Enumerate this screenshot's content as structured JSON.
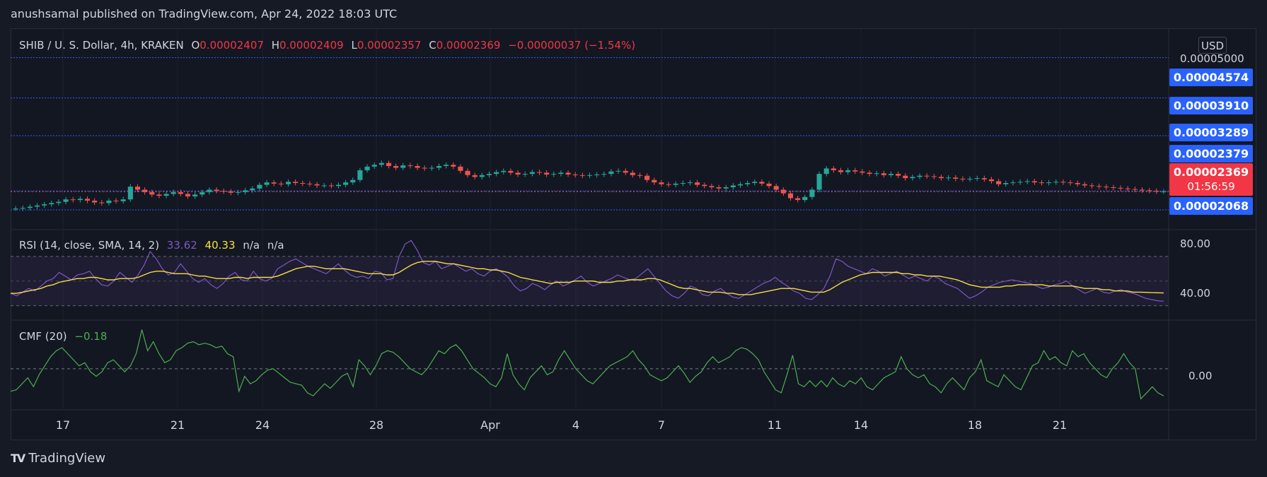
{
  "header": {
    "text": "anushsamal published on TradingView.com, Apr 24, 2022 18:03 UTC"
  },
  "legend": {
    "symbol": "SHIB / U. S. Dollar, 4h, KRAKEN",
    "o_label": "O",
    "o_value": "0.00002407",
    "h_label": "H",
    "h_value": "0.00002409",
    "l_label": "L",
    "l_value": "0.00002357",
    "c_label": "C",
    "c_value": "0.00002369",
    "change": "−0.00000037 (−1.54%)"
  },
  "rsi_legend": {
    "label": "RSI (14, close, SMA, 14, 2)",
    "rsi_value": "33.62",
    "sma_value": "40.33",
    "na1": "n/a",
    "na2": "n/a"
  },
  "cmf_legend": {
    "label": "CMF (20)",
    "value": "−0.18"
  },
  "currency_button": "USD",
  "price_axis": {
    "top_tick": "0.00005000",
    "labels": [
      "0.00004574",
      "0.00003910",
      "0.00003289",
      "0.00002379",
      "0.00002068"
    ],
    "last_price": "0.00002369",
    "countdown": "01:56:59"
  },
  "rsi_axis": [
    "80.00",
    "40.00"
  ],
  "cmf_axis": [
    "0.00"
  ],
  "x_axis": [
    "17",
    "21",
    "24",
    "28",
    "Apr",
    "4",
    "7",
    "11",
    "14",
    "18",
    "21"
  ],
  "brand": {
    "name": "TradingView",
    "mark": "TV"
  },
  "colors": {
    "up": "#26a69a",
    "down": "#ef5350",
    "rsi": "#7e57c2",
    "rsi_sma": "#f5e042",
    "cmf": "#4caf50",
    "hline": "#2962ff"
  },
  "chart_data": [
    {
      "type": "candlestick",
      "title": "SHIB / U. S. Dollar, 4h, KRAKEN",
      "ylim": [
        1.8e-05,
        5e-05
      ],
      "horizontal_levels": [
        4.574e-05,
        3.91e-05,
        3.289e-05,
        2.379e-05,
        2.068e-05
      ],
      "last_close": 2.369e-05,
      "x_ticks": [
        "17",
        "21",
        "24",
        "28",
        "Apr",
        "4",
        "7",
        "11",
        "14",
        "18",
        "21"
      ],
      "closes_approx": [
        2.09e-05,
        2.1e-05,
        2.12e-05,
        2.14e-05,
        2.16e-05,
        2.18e-05,
        2.2e-05,
        2.24e-05,
        2.23e-05,
        2.25e-05,
        2.22e-05,
        2.19e-05,
        2.18e-05,
        2.22e-05,
        2.21e-05,
        2.24e-05,
        2.45e-05,
        2.4e-05,
        2.36e-05,
        2.32e-05,
        2.3e-05,
        2.33e-05,
        2.36e-05,
        2.33e-05,
        2.29e-05,
        2.32e-05,
        2.36e-05,
        2.4e-05,
        2.38e-05,
        2.37e-05,
        2.35e-05,
        2.36e-05,
        2.39e-05,
        2.42e-05,
        2.48e-05,
        2.52e-05,
        2.5e-05,
        2.49e-05,
        2.53e-05,
        2.51e-05,
        2.5e-05,
        2.49e-05,
        2.47e-05,
        2.47e-05,
        2.46e-05,
        2.48e-05,
        2.52e-05,
        2.56e-05,
        2.72e-05,
        2.78e-05,
        2.81e-05,
        2.84e-05,
        2.79e-05,
        2.76e-05,
        2.8e-05,
        2.79e-05,
        2.76e-05,
        2.75e-05,
        2.76e-05,
        2.79e-05,
        2.81e-05,
        2.78e-05,
        2.71e-05,
        2.64e-05,
        2.61e-05,
        2.64e-05,
        2.66e-05,
        2.69e-05,
        2.71e-05,
        2.68e-05,
        2.65e-05,
        2.66e-05,
        2.69e-05,
        2.68e-05,
        2.65e-05,
        2.66e-05,
        2.68e-05,
        2.65e-05,
        2.64e-05,
        2.63e-05,
        2.64e-05,
        2.65e-05,
        2.66e-05,
        2.7e-05,
        2.71e-05,
        2.68e-05,
        2.64e-05,
        2.63e-05,
        2.56e-05,
        2.52e-05,
        2.49e-05,
        2.48e-05,
        2.5e-05,
        2.51e-05,
        2.52e-05,
        2.48e-05,
        2.46e-05,
        2.44e-05,
        2.42e-05,
        2.44e-05,
        2.47e-05,
        2.49e-05,
        2.51e-05,
        2.53e-05,
        2.5e-05,
        2.46e-05,
        2.4e-05,
        2.34e-05,
        2.26e-05,
        2.23e-05,
        2.28e-05,
        2.4e-05,
        2.66e-05,
        2.75e-05,
        2.72e-05,
        2.69e-05,
        2.72e-05,
        2.7e-05,
        2.68e-05,
        2.66e-05,
        2.67e-05,
        2.64e-05,
        2.66e-05,
        2.63e-05,
        2.59e-05,
        2.61e-05,
        2.63e-05,
        2.62e-05,
        2.61e-05,
        2.59e-05,
        2.6e-05,
        2.58e-05,
        2.57e-05,
        2.58e-05,
        2.59e-05,
        2.57e-05,
        2.54e-05,
        2.49e-05,
        2.51e-05,
        2.52e-05,
        2.53e-05,
        2.54e-05,
        2.52e-05,
        2.51e-05,
        2.52e-05,
        2.53e-05,
        2.52e-05,
        2.51e-05,
        2.49e-05,
        2.47e-05,
        2.46e-05,
        2.45e-05,
        2.44e-05,
        2.43e-05,
        2.42e-05,
        2.41e-05,
        2.4e-05,
        2.39e-05,
        2.38e-05,
        2.37e-05,
        2.37e-05
      ]
    },
    {
      "type": "line",
      "title": "RSI (14, close, SMA, 14, 2)",
      "ylim": [
        20,
        90
      ],
      "y_ticks": [
        80,
        40
      ],
      "bands": {
        "upper": 70,
        "middle": 50,
        "lower": 30
      },
      "series": [
        {
          "name": "RSI",
          "values": [
            40,
            38,
            41,
            44,
            42,
            46,
            50,
            52,
            57,
            54,
            51,
            55,
            56,
            58,
            52,
            47,
            46,
            50,
            57,
            53,
            49,
            55,
            63,
            74,
            68,
            60,
            55,
            57,
            64,
            58,
            52,
            49,
            52,
            47,
            44,
            48,
            54,
            57,
            51,
            50,
            58,
            52,
            50,
            52,
            60,
            63,
            66,
            68,
            65,
            62,
            60,
            58,
            56,
            60,
            64,
            59,
            55,
            53,
            54,
            52,
            58,
            57,
            51,
            52,
            70,
            80,
            83,
            75,
            65,
            63,
            66,
            60,
            62,
            64,
            61,
            58,
            60,
            56,
            54,
            58,
            60,
            57,
            53,
            46,
            42,
            44,
            48,
            46,
            43,
            47,
            50,
            46,
            48,
            51,
            54,
            49,
            46,
            48,
            50,
            52,
            55,
            53,
            51,
            52,
            56,
            60,
            54,
            48,
            42,
            38,
            36,
            40,
            46,
            44,
            39,
            38,
            42,
            44,
            40,
            37,
            36,
            39,
            42,
            45,
            48,
            50,
            53,
            49,
            46,
            42,
            40,
            36,
            35,
            39,
            44,
            54,
            68,
            66,
            62,
            60,
            58,
            56,
            60,
            58,
            54,
            56,
            58,
            55,
            52,
            54,
            52,
            50,
            54,
            52,
            48,
            46,
            44,
            40,
            36,
            38,
            41,
            45,
            47,
            49,
            50,
            51,
            50,
            49,
            48,
            46,
            44,
            45,
            47,
            48,
            50,
            46,
            43,
            40,
            42,
            44,
            41,
            40,
            42,
            43,
            41,
            40,
            38,
            36,
            35,
            34,
            33.62
          ]
        },
        {
          "name": "SMA",
          "values": [
            40,
            40,
            41,
            42,
            43,
            44,
            46,
            47,
            49,
            50,
            51,
            52,
            52,
            53,
            53,
            52,
            51,
            51,
            52,
            52,
            52,
            53,
            55,
            57,
            58,
            58,
            57,
            56,
            56,
            56,
            55,
            54,
            54,
            53,
            52,
            52,
            52,
            53,
            53,
            52,
            53,
            53,
            53,
            53,
            54,
            56,
            58,
            60,
            61,
            62,
            62,
            61,
            60,
            60,
            60,
            60,
            59,
            58,
            57,
            56,
            56,
            56,
            55,
            55,
            57,
            60,
            63,
            65,
            66,
            66,
            66,
            65,
            64,
            64,
            63,
            62,
            61,
            60,
            60,
            59,
            59,
            58,
            57,
            55,
            53,
            52,
            51,
            50,
            49,
            48,
            49,
            49,
            49,
            50,
            50,
            50,
            50,
            49,
            49,
            49,
            50,
            50,
            51,
            51,
            51,
            52,
            52,
            51,
            49,
            47,
            45,
            44,
            44,
            43,
            42,
            41,
            41,
            41,
            40,
            40,
            39,
            39,
            39,
            40,
            41,
            42,
            43,
            44,
            44,
            44,
            43,
            42,
            41,
            41,
            41,
            43,
            46,
            49,
            51,
            53,
            55,
            56,
            57,
            57,
            57,
            57,
            57,
            56,
            56,
            55,
            55,
            54,
            54,
            54,
            53,
            52,
            51,
            49,
            47,
            46,
            45,
            45,
            45,
            45,
            46,
            46,
            47,
            47,
            47,
            47,
            47,
            46,
            46,
            46,
            46,
            46,
            45,
            44,
            44,
            44,
            43,
            43,
            42,
            42,
            42,
            41,
            41,
            40.8,
            40.6,
            40.5,
            40.33
          ]
        }
      ]
    },
    {
      "type": "line",
      "title": "CMF (20)",
      "y_ticks": [
        0
      ],
      "ylim": [
        -0.25,
        0.3
      ],
      "series": [
        {
          "name": "CMF",
          "values": [
            -0.15,
            -0.14,
            -0.1,
            -0.06,
            -0.12,
            -0.04,
            0.02,
            0.08,
            0.12,
            0.14,
            0.1,
            0.06,
            0.02,
            0.04,
            -0.02,
            -0.05,
            -0.02,
            0.04,
            0.06,
            0.02,
            -0.02,
            0.02,
            0.1,
            0.26,
            0.12,
            0.18,
            0.1,
            0.04,
            0.06,
            0.12,
            0.14,
            0.17,
            0.18,
            0.16,
            0.17,
            0.16,
            0.14,
            0.15,
            0.1,
            0.08,
            -0.15,
            -0.05,
            -0.1,
            -0.08,
            -0.04,
            -0.01,
            0.0,
            -0.03,
            -0.06,
            -0.09,
            -0.1,
            -0.11,
            -0.16,
            -0.18,
            -0.14,
            -0.1,
            -0.13,
            -0.09,
            -0.05,
            -0.03,
            -0.12,
            0.06,
            0.02,
            -0.04,
            0.02,
            0.1,
            0.12,
            0.11,
            0.08,
            0.04,
            0.0,
            -0.02,
            -0.04,
            0.0,
            0.06,
            0.12,
            0.1,
            0.14,
            0.16,
            0.12,
            0.06,
            0.0,
            -0.03,
            -0.06,
            -0.1,
            -0.12,
            -0.06,
            0.1,
            -0.04,
            -0.1,
            -0.14,
            -0.06,
            -0.02,
            0.02,
            -0.04,
            -0.02,
            0.06,
            0.12,
            0.06,
            0.0,
            -0.04,
            -0.08,
            -0.1,
            -0.06,
            -0.02,
            0.02,
            0.04,
            0.06,
            0.08,
            0.12,
            0.06,
            0.02,
            -0.04,
            -0.06,
            -0.08,
            -0.06,
            -0.02,
            0.02,
            -0.03,
            -0.09,
            -0.05,
            -0.02,
            0.04,
            0.08,
            0.04,
            0.06,
            0.08,
            0.12,
            0.14,
            0.13,
            0.1,
            0.06,
            -0.02,
            -0.08,
            -0.14,
            -0.16,
            -0.04,
            0.09,
            -0.1,
            -0.12,
            -0.08,
            -0.12,
            -0.08,
            -0.12,
            -0.06,
            -0.1,
            -0.12,
            -0.08,
            -0.1,
            -0.06,
            -0.12,
            -0.14,
            -0.1,
            -0.06,
            -0.04,
            -0.02,
            0.08,
            0.0,
            -0.04,
            -0.06,
            -0.04,
            -0.1,
            -0.12,
            -0.16,
            -0.1,
            -0.06,
            -0.1,
            -0.14,
            -0.06,
            -0.02,
            0.06,
            -0.08,
            -0.1,
            -0.12,
            -0.04,
            -0.08,
            -0.12,
            -0.14,
            -0.06,
            0.02,
            0.04,
            0.12,
            0.06,
            0.08,
            0.04,
            0.02,
            0.12,
            0.08,
            0.1,
            0.04,
            0.0,
            -0.04,
            -0.06,
            0.0,
            0.04,
            0.1,
            0.04,
            0.0,
            -0.2,
            -0.16,
            -0.12,
            -0.16,
            -0.18
          ]
        }
      ]
    }
  ]
}
